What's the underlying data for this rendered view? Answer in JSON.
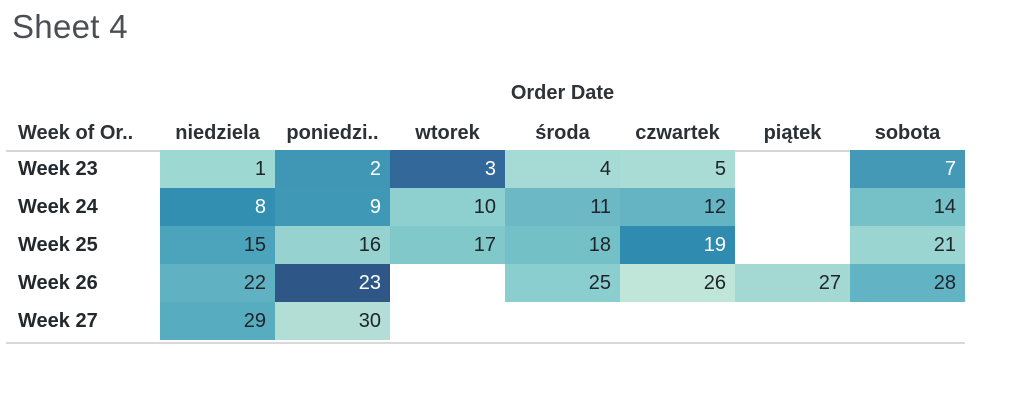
{
  "title": "Sheet 4",
  "field_label": "Order Date",
  "header": {
    "row_field": "Week of Or..",
    "days": [
      "niedziela",
      "poniedzi..",
      "wtorek",
      "środa",
      "czwartek",
      "piątek",
      "sobota"
    ]
  },
  "text_colors": {
    "dark": "#1f2429",
    "light": "#ffffff"
  },
  "grid": {
    "rows": [
      {
        "label": "Week 23",
        "cells": [
          {
            "day": "1",
            "bg": "#9ed8d3",
            "fg": "#1f2429"
          },
          {
            "day": "2",
            "bg": "#3f97b5",
            "fg": "#ffffff"
          },
          {
            "day": "3",
            "bg": "#33689b",
            "fg": "#ffffff"
          },
          {
            "day": "4",
            "bg": "#a6dad4",
            "fg": "#1f2429"
          },
          {
            "day": "5",
            "bg": "#a9dcd4",
            "fg": "#1f2429"
          },
          {},
          {
            "day": "7",
            "bg": "#4399b6",
            "fg": "#ffffff"
          }
        ]
      },
      {
        "label": "Week 24",
        "cells": [
          {
            "day": "8",
            "bg": "#328fb2",
            "fg": "#ffffff"
          },
          {
            "day": "9",
            "bg": "#3f98b6",
            "fg": "#ffffff"
          },
          {
            "day": "10",
            "bg": "#8ed0cf",
            "fg": "#1f2429"
          },
          {
            "day": "11",
            "bg": "#6cb8c5",
            "fg": "#1f2429"
          },
          {
            "day": "12",
            "bg": "#64b4c3",
            "fg": "#1f2429"
          },
          {},
          {
            "day": "14",
            "bg": "#76c1c8",
            "fg": "#1f2429"
          }
        ]
      },
      {
        "label": "Week 25",
        "cells": [
          {
            "day": "15",
            "bg": "#4ba4bb",
            "fg": "#1f2429"
          },
          {
            "day": "16",
            "bg": "#95d2d0",
            "fg": "#1f2429"
          },
          {
            "day": "17",
            "bg": "#81c8cb",
            "fg": "#1f2429"
          },
          {
            "day": "18",
            "bg": "#74c0c7",
            "fg": "#1f2429"
          },
          {
            "day": "19",
            "bg": "#2f8cb0",
            "fg": "#ffffff"
          },
          {},
          {
            "day": "21",
            "bg": "#9bd5d2",
            "fg": "#1f2429"
          }
        ]
      },
      {
        "label": "Week 26",
        "cells": [
          {
            "day": "22",
            "bg": "#60b2c2",
            "fg": "#1f2429"
          },
          {
            "day": "23",
            "bg": "#2e5787",
            "fg": "#ffffff"
          },
          {},
          {
            "day": "25",
            "bg": "#8bced0",
            "fg": "#1f2429"
          },
          {
            "day": "26",
            "bg": "#c0e5d9",
            "fg": "#1f2429"
          },
          {
            "day": "27",
            "bg": "#a4d8d3",
            "fg": "#1f2429"
          },
          {
            "day": "28",
            "bg": "#62b3c4",
            "fg": "#1f2429"
          }
        ]
      },
      {
        "label": "Week 27",
        "cells": [
          {
            "day": "29",
            "bg": "#57acc0",
            "fg": "#1f2429"
          },
          {
            "day": "30",
            "bg": "#b3ded5",
            "fg": "#1f2429"
          },
          {},
          {},
          {},
          {},
          {}
        ]
      }
    ]
  },
  "chart_data": {
    "type": "heatmap",
    "title": "Order Date",
    "row_axis_label": "Week of Or..",
    "rows": [
      "Week 23",
      "Week 24",
      "Week 25",
      "Week 26",
      "Week 27"
    ],
    "columns": [
      "niedziela",
      "poniedzi..",
      "wtorek",
      "środa",
      "czwartek",
      "piątek",
      "sobota"
    ],
    "cell_day_numbers": [
      [
        1,
        2,
        3,
        4,
        5,
        null,
        7
      ],
      [
        8,
        9,
        10,
        11,
        12,
        null,
        14
      ],
      [
        15,
        16,
        17,
        18,
        19,
        null,
        21
      ],
      [
        22,
        23,
        null,
        25,
        26,
        27,
        28
      ],
      [
        29,
        30,
        null,
        null,
        null,
        null,
        null
      ]
    ],
    "cell_colors": [
      [
        "#9ed8d3",
        "#3f97b5",
        "#33689b",
        "#a6dad4",
        "#a9dcd4",
        null,
        "#4399b6"
      ],
      [
        "#328fb2",
        "#3f98b6",
        "#8ed0cf",
        "#6cb8c5",
        "#64b4c3",
        null,
        "#76c1c8"
      ],
      [
        "#4ba4bb",
        "#95d2d0",
        "#81c8cb",
        "#74c0c7",
        "#2f8cb0",
        null,
        "#9bd5d2"
      ],
      [
        "#60b2c2",
        "#2e5787",
        null,
        "#8bced0",
        "#c0e5d9",
        "#a4d8d3",
        "#62b3c4"
      ],
      [
        "#57acc0",
        "#b3ded5",
        null,
        null,
        null,
        null,
        null
      ]
    ],
    "color_scale": {
      "low_color": "#c0e5d9",
      "mid_color": "#4ba4bb",
      "high_color": "#2e5787",
      "note": "light mint = low, dark navy = high"
    },
    "legend_position": "none",
    "grid_lines": "off"
  }
}
